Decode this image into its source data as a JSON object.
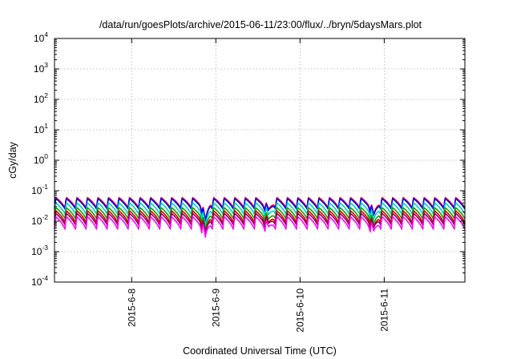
{
  "chart_data": {
    "type": "line",
    "title": "/data/run/goesPlots/archive/2015-06-11/23:00/flux/../bryn/5daysMars.plot",
    "xlabel": "Coordinated Universal Time (UTC)",
    "ylabel": "cGy/day",
    "yscale": "log",
    "ylim": [
      0.0001,
      10000
    ],
    "xlim": [
      "2015-06-07T02:00",
      "2015-06-11T23:00"
    ],
    "x_ticks": [
      {
        "label": "2015-6-8",
        "value": "2015-06-08"
      },
      {
        "label": "2015-6-9",
        "value": "2015-06-09"
      },
      {
        "label": "2015-6-10",
        "value": "2015-06-10"
      },
      {
        "label": "2015-6-11",
        "value": "2015-06-11"
      }
    ],
    "y_ticks": [
      {
        "base": "10",
        "exp": "-4",
        "value": 0.0001
      },
      {
        "base": "10",
        "exp": "-3",
        "value": 0.001
      },
      {
        "base": "10",
        "exp": "-2",
        "value": 0.01
      },
      {
        "base": "10",
        "exp": "-1",
        "value": 0.1
      },
      {
        "base": "10",
        "exp": "0",
        "value": 1
      },
      {
        "base": "10",
        "exp": "1",
        "value": 10
      },
      {
        "base": "10",
        "exp": "2",
        "value": 100
      },
      {
        "base": "10",
        "exp": "3",
        "value": 1000
      },
      {
        "base": "10",
        "exp": "4",
        "value": 10000
      }
    ],
    "grid": true,
    "legend": "none",
    "cycle_hours": 3,
    "dips": [
      {
        "time": "2015-06-08T21:00",
        "factor": 0.25
      },
      {
        "time": "2015-06-09T15:00",
        "factor": 0.55
      },
      {
        "time": "2015-06-10T21:00",
        "factor": 0.4
      }
    ],
    "series": [
      {
        "color": "#ff0000",
        "peak": 0.06,
        "trough": 0.028
      },
      {
        "color": "#0000ff",
        "peak": 0.055,
        "trough": 0.025
      },
      {
        "color": "#00cccc",
        "peak": 0.04,
        "trough": 0.017
      },
      {
        "color": "#00aa00",
        "peak": 0.028,
        "trough": 0.012
      },
      {
        "color": "#cc0000",
        "peak": 0.022,
        "trough": 0.009
      },
      {
        "color": "#8b0045",
        "peak": 0.018,
        "trough": 0.0075
      },
      {
        "color": "#ff00ff",
        "peak": 0.014,
        "trough": 0.0055
      }
    ]
  }
}
